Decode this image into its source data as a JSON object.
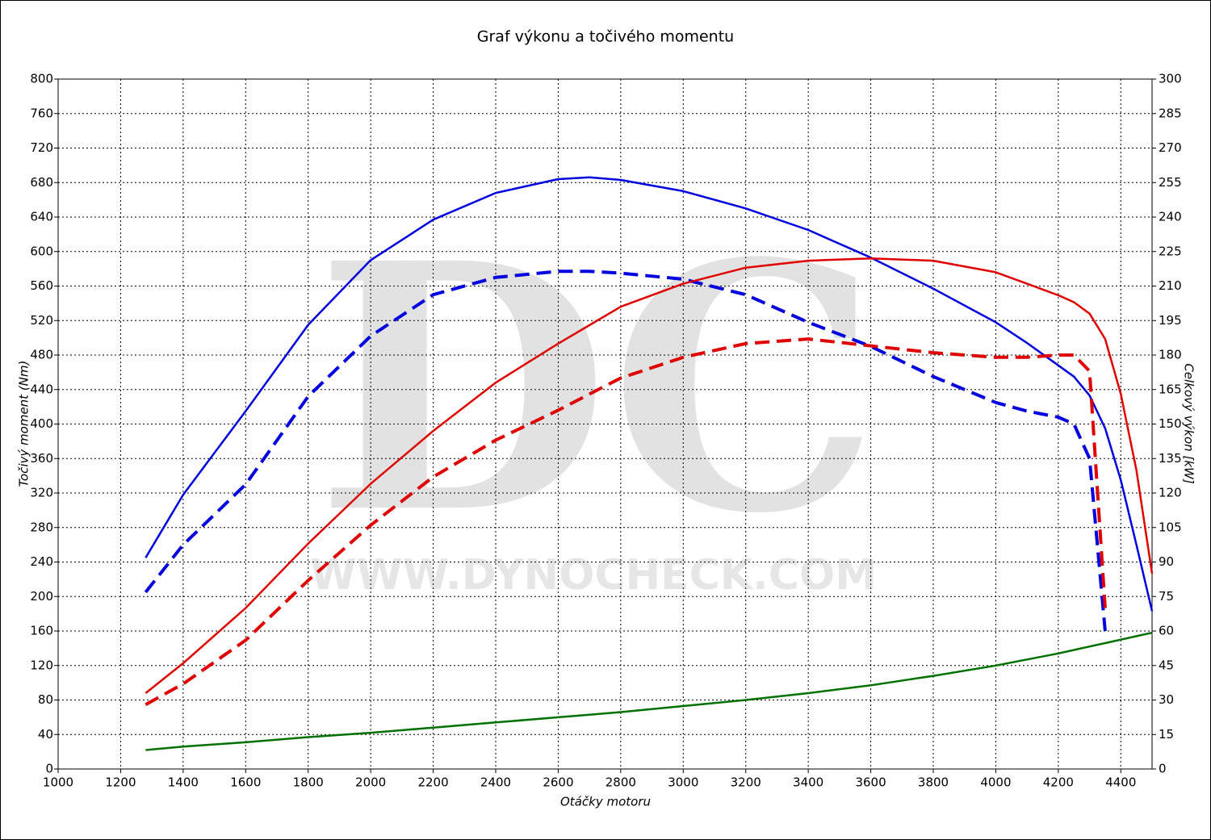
{
  "chart_data": {
    "type": "line",
    "title": "Graf výkonu a točivého momentu",
    "x_label": "Otáčky motoru",
    "y_label": "Točivý moment (Nm)",
    "y2_label": "Celkový výkon [kW]",
    "watermark": "DC",
    "watermark_url": "WWW.DYNOCHECK.COM",
    "x": [
      1280,
      1400,
      1600,
      1800,
      2000,
      2200,
      2400,
      2600,
      2700,
      2800,
      3000,
      3200,
      3400,
      3600,
      3800,
      4000,
      4100,
      4200,
      4250,
      4300,
      4350,
      4400,
      4450,
      4500
    ],
    "xlim": [
      1000,
      4500
    ],
    "xticks": [
      1000,
      1200,
      1400,
      1600,
      1800,
      2000,
      2200,
      2400,
      2600,
      2800,
      3000,
      3200,
      3400,
      3600,
      3800,
      4000,
      4200,
      4400
    ],
    "ylim": [
      0,
      800
    ],
    "yticks": [
      0,
      40,
      80,
      120,
      160,
      200,
      240,
      280,
      320,
      360,
      400,
      440,
      480,
      520,
      560,
      600,
      640,
      680,
      720,
      760,
      800
    ],
    "y2lim": [
      0,
      300
    ],
    "y2ticks": [
      0,
      15,
      30,
      45,
      60,
      75,
      90,
      105,
      120,
      135,
      150,
      165,
      180,
      195,
      210,
      225,
      240,
      255,
      270,
      285,
      300
    ],
    "grid": true,
    "series": [
      {
        "color": "#0000e0",
        "dash": false,
        "values": [
          245,
          318,
          415,
          515,
          590,
          637,
          668,
          684,
          686,
          683,
          670,
          650,
          625,
          593,
          557,
          518,
          494,
          468,
          455,
          433,
          395,
          335,
          260,
          183
        ]
      },
      {
        "color": "#0000e0",
        "dash": true,
        "values": [
          205,
          260,
          330,
          432,
          502,
          550,
          570,
          577,
          577,
          575,
          568,
          550,
          518,
          490,
          455,
          425,
          415,
          408,
          400,
          360,
          160,
          null,
          null,
          null
        ]
      },
      {
        "color": "#e00000",
        "dash": false,
        "axis": "y2",
        "values": [
          33,
          46,
          70,
          98,
          124,
          147,
          168,
          185,
          193,
          201,
          211,
          218,
          221,
          222,
          221,
          216,
          211,
          206,
          203,
          198,
          187,
          163,
          130,
          85
        ]
      },
      {
        "color": "#e00000",
        "dash": true,
        "axis": "y2",
        "values": [
          28,
          37,
          56,
          82,
          106,
          127,
          143,
          156,
          163,
          170,
          179,
          185,
          187,
          184,
          181,
          179,
          179,
          180,
          180,
          173,
          70,
          null,
          null,
          null
        ]
      },
      {
        "color": "#007000",
        "dash": false,
        "values": [
          22,
          26,
          31,
          37,
          42,
          48,
          54,
          60,
          63,
          66,
          73,
          80,
          88,
          97,
          108,
          120,
          127,
          134,
          138,
          142,
          146,
          150,
          154,
          158
        ]
      }
    ]
  }
}
